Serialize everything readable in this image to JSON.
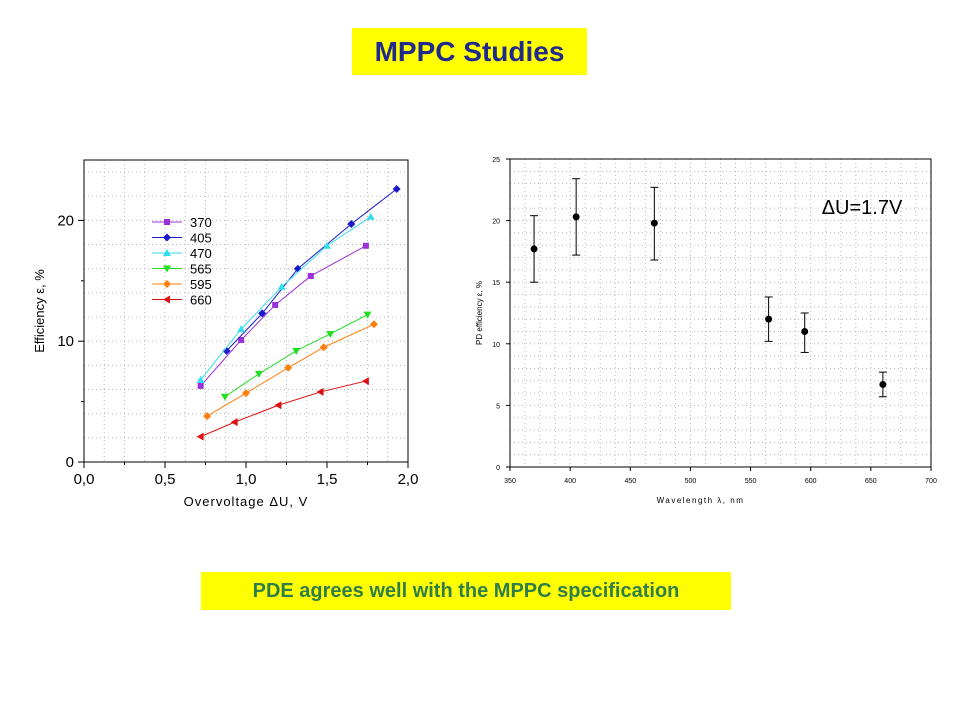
{
  "slide": {
    "title": "MPPC Studies",
    "caption": "PDE agrees well with the MPPC specification"
  },
  "colors": {
    "title_bg": "#ffff00",
    "title_text": "#1f2a8c",
    "caption_text": "#2e7d4a"
  },
  "chart_data": [
    {
      "type": "line",
      "xlabel": "Overvoltage ΔU, V",
      "ylabel": "Efficiency ε, %",
      "xlim": [
        0.0,
        2.0
      ],
      "ylim": [
        0,
        25
      ],
      "x_ticks": [
        "0,0",
        "0,5",
        "1,0",
        "1,5",
        "2,0"
      ],
      "x_tick_values": [
        0.0,
        0.5,
        1.0,
        1.5,
        2.0
      ],
      "y_ticks": [
        "0",
        "10",
        "20"
      ],
      "y_tick_values": [
        0,
        10,
        20
      ],
      "grid": true,
      "legend_placement": "top-left",
      "series": [
        {
          "name": "370",
          "color": "#9b30d9",
          "marker": "square",
          "x": [
            0.72,
            0.97,
            1.18,
            1.4,
            1.74
          ],
          "y": [
            6.3,
            10.1,
            13.0,
            15.4,
            17.9
          ]
        },
        {
          "name": "405",
          "color": "#1a1acc",
          "marker": "diamond",
          "x": [
            0.88,
            1.1,
            1.32,
            1.65,
            1.93
          ],
          "y": [
            9.2,
            12.3,
            16.0,
            19.7,
            22.6
          ]
        },
        {
          "name": "470",
          "color": "#33ddee",
          "marker": "triangle-up",
          "x": [
            0.72,
            0.97,
            1.22,
            1.5,
            1.77
          ],
          "y": [
            6.8,
            11.0,
            14.5,
            17.9,
            20.3
          ]
        },
        {
          "name": "565",
          "color": "#22dd22",
          "marker": "triangle-down",
          "x": [
            0.87,
            1.08,
            1.31,
            1.52,
            1.75
          ],
          "y": [
            5.4,
            7.3,
            9.2,
            10.6,
            12.2
          ]
        },
        {
          "name": "595",
          "color": "#ff7f0e",
          "marker": "diamond",
          "x": [
            0.76,
            1.0,
            1.26,
            1.48,
            1.79
          ],
          "y": [
            3.8,
            5.7,
            7.8,
            9.5,
            11.4
          ]
        },
        {
          "name": "660",
          "color": "#dd1111",
          "marker": "triangle-left",
          "x": [
            0.72,
            0.93,
            1.2,
            1.46,
            1.74
          ],
          "y": [
            2.1,
            3.3,
            4.7,
            5.8,
            6.7
          ]
        }
      ]
    },
    {
      "type": "scatter",
      "xlabel": "Wavelength λ, nm",
      "ylabel": "PD efficiency ε, %",
      "xlim": [
        350,
        700
      ],
      "ylim": [
        0,
        25
      ],
      "x_ticks": [
        "350",
        "400",
        "450",
        "500",
        "550",
        "600",
        "650",
        "700"
      ],
      "x_tick_values": [
        350,
        400,
        450,
        500,
        550,
        600,
        650,
        700
      ],
      "y_ticks": [
        "0",
        "5",
        "10",
        "15",
        "20",
        "25"
      ],
      "y_tick_values": [
        0,
        5,
        10,
        15,
        20,
        25
      ],
      "grid": true,
      "annotation": "ΔU=1.7V",
      "points": [
        {
          "x": 370,
          "y": 17.7,
          "err_low": 15.0,
          "err_high": 20.4
        },
        {
          "x": 405,
          "y": 20.3,
          "err_low": 17.2,
          "err_high": 23.4
        },
        {
          "x": 470,
          "y": 19.8,
          "err_low": 16.8,
          "err_high": 22.7
        },
        {
          "x": 565,
          "y": 12.0,
          "err_low": 10.2,
          "err_high": 13.8
        },
        {
          "x": 595,
          "y": 11.0,
          "err_low": 9.3,
          "err_high": 12.5
        },
        {
          "x": 660,
          "y": 6.7,
          "err_low": 5.7,
          "err_high": 7.7
        }
      ]
    }
  ]
}
